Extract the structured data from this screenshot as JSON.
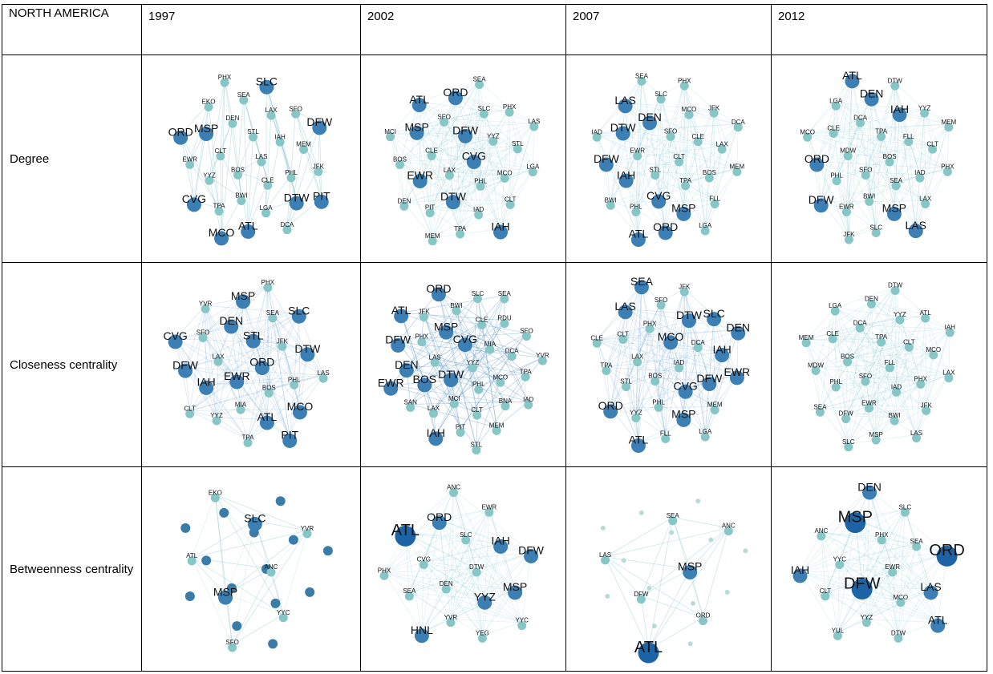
{
  "header": [
    "NORTH AMERICA",
    "1997",
    "2002",
    "2007",
    "2012"
  ],
  "rows": [
    {
      "label": "Degree",
      "cells": [
        [
          "EKO",
          "PHX",
          "SEA",
          "SLC",
          "SFO",
          "MSP",
          "DEN",
          "STL",
          "LAX",
          "DFW",
          "ORD",
          "CLT",
          "LAS",
          "IAH",
          "MEM",
          "EWR",
          "YYZ",
          "BOS",
          "PHL",
          "JFK",
          "CVG",
          "BWI",
          "CLE",
          "DTW",
          "PIT",
          "TPA",
          "MCO",
          "ATL",
          "LGA",
          "DCA"
        ],
        [
          "ATL",
          "ORD",
          "SEA",
          "SLC",
          "PHX",
          "MCI",
          "MSP",
          "SFO",
          "DFW",
          "LAS",
          "BOS",
          "CLE",
          "CVG",
          "YYZ",
          "STL",
          "EWR",
          "LAX",
          "PHL",
          "MCO",
          "LGA",
          "DEN",
          "PIT",
          "DTW",
          "IAD",
          "CLT",
          "MEM",
          "TPA",
          "IAH"
        ],
        [
          "LAS",
          "SEA",
          "SLC",
          "PHX",
          "JFK",
          "DTW",
          "DEN",
          "SFO",
          "MCO",
          "DCA",
          "IAD",
          "EWR",
          "CLT",
          "CLE",
          "LAX",
          "DFW",
          "IAH",
          "STL",
          "BOS",
          "MEM",
          "BWI",
          "PHL",
          "CVG",
          "TPA",
          "FLL",
          "ATL",
          "ORD",
          "MSP",
          "LGA"
        ],
        [
          "LGA",
          "ATL",
          "DEN",
          "DTW",
          "YYZ",
          "CLE",
          "DCA",
          "TPA",
          "IAH",
          "MEM",
          "MCO",
          "MDW",
          "BOS",
          "FLL",
          "CLT",
          "ORD",
          "PHL",
          "SFO",
          "IAD",
          "PHX",
          "DFW",
          "EWR",
          "BWI",
          "SEA",
          "LAX",
          "JFK",
          "SLC",
          "MSP",
          "LAS"
        ]
      ]
    },
    {
      "label": "Closeness centrality",
      "cells": [
        [
          "YVR",
          "MSP",
          "PHX",
          "SEA",
          "SLC",
          "CVG",
          "SFO",
          "DEN",
          "STL",
          "JFK",
          "DFW",
          "LAX",
          "ORD",
          "DTW",
          "LAS",
          "IAH",
          "EWR",
          "MIA",
          "BOS",
          "PHL",
          "CLT",
          "YYZ",
          "ATL",
          "PIT",
          "MCO",
          "TPA"
        ],
        [
          "ATL",
          "JFK",
          "ORD",
          "BWI",
          "SLC",
          "SEA",
          "PHX",
          "MSP",
          "CVG",
          "CLE",
          "RDU",
          "SFO",
          "DFW",
          "LAS",
          "YYZ",
          "MIA",
          "DCA",
          "YVR",
          "EWR",
          "DEN",
          "BOS",
          "DTW",
          "MCO",
          "TPA",
          "SAN",
          "LAX",
          "MCI",
          "PHL",
          "BNA",
          "IAD",
          "IAH",
          "PIT",
          "STL",
          "CLT",
          "MEM"
        ],
        [
          "LAS",
          "SEA",
          "SFO",
          "JFK",
          "SLC",
          "CLT",
          "PHX",
          "MCO",
          "DTW",
          "DEN",
          "CLE",
          "LAX",
          "IAD",
          "DCA",
          "IAH",
          "TPA",
          "STL",
          "BOS",
          "DFW",
          "EWR",
          "ORD",
          "YYZ",
          "PHL",
          "CVG",
          "MEM",
          "ATL",
          "FLL",
          "MSP",
          "LGA"
        ],
        [
          "LGA",
          "DEN",
          "DTW",
          "YYZ",
          "ATL",
          "MEM",
          "CLE",
          "DCA",
          "TPA",
          "IAH",
          "MDW",
          "BOS",
          "FLL",
          "CLT",
          "MCO",
          "PHL",
          "SFO",
          "IAD",
          "PHX",
          "LAX",
          "SEA",
          "DFW",
          "EWR",
          "BWI",
          "JFK",
          "SLC",
          "MSP",
          "LAS"
        ]
      ]
    },
    {
      "label": "Betweenness centrality",
      "cells": [
        [
          "EKO",
          "SLC",
          "YVR",
          "ATL",
          "MSP",
          "ANC",
          "SFO",
          "YYC"
        ],
        [
          "ATL",
          "ORD",
          "ANC",
          "EWR",
          "CVG",
          "SLC",
          "IAH",
          "DFW",
          "PHX",
          "DEN",
          "DTW",
          "MSP",
          "SEA",
          "YVR",
          "YYZ",
          "YYC",
          "HNL",
          "YEG"
        ],
        [
          "LAS",
          "SEA",
          "ANC",
          "DFW",
          "MSP",
          "ORD",
          "ATL"
        ],
        [
          "ANC",
          "MSP",
          "DEN",
          "SLC",
          "YYC",
          "PHX",
          "SEA",
          "ORD",
          "IAH",
          "DFW",
          "EWR",
          "LAS",
          "CLT",
          "YYZ",
          "MCO",
          "ATL",
          "YUL",
          "DTW"
        ]
      ]
    }
  ]
}
